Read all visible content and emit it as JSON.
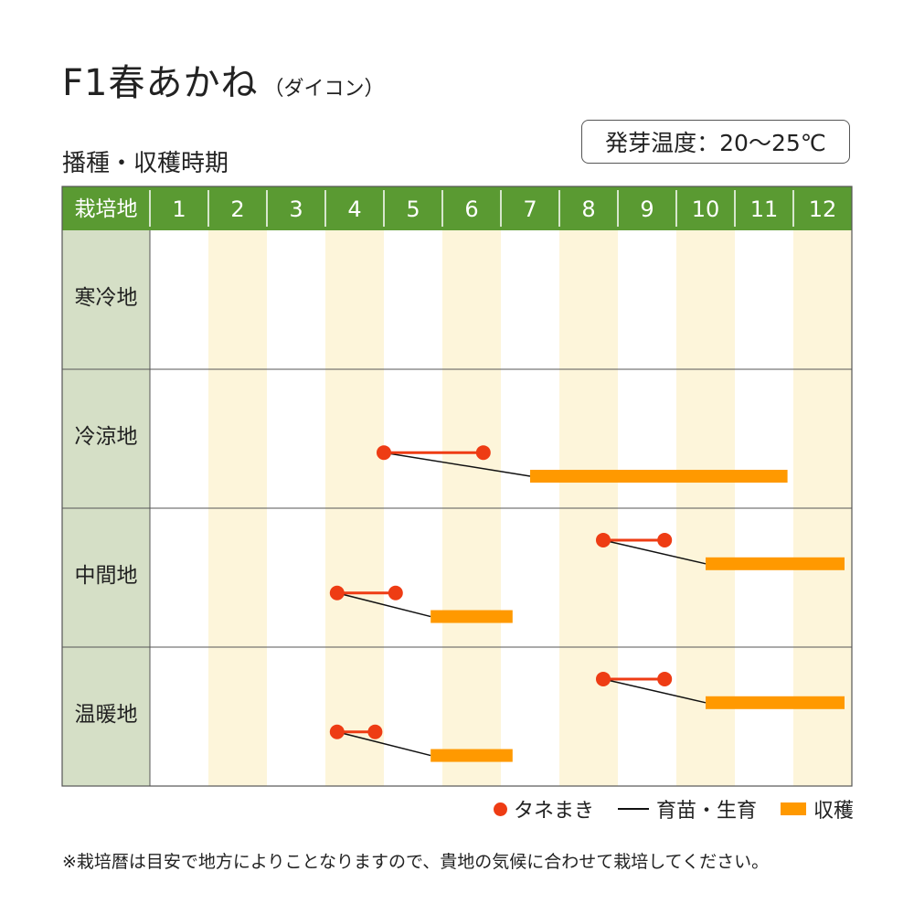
{
  "title": {
    "main": "F1春あかね",
    "sub": "（ダイコン）"
  },
  "section_title": "播種・収穫時期",
  "germination": "発芽温度：20〜25℃",
  "legend": {
    "sowing": "タネまき",
    "growing": "育苗・生育",
    "harvest": "収穫"
  },
  "note": "※栽培暦は目安で地方によりことなりますので、貴地の気候に合わせて栽培してください。",
  "colors": {
    "header_green": "#5a9a32",
    "label_col_bg": "#d5dfc6",
    "stripe": "#fdf5da",
    "sowing": "#ee3c14",
    "harvest": "#ff9900",
    "growth_line": "#111111"
  },
  "chart_data": {
    "type": "gantt",
    "header_label": "栽培地",
    "months": [
      "1",
      "2",
      "3",
      "4",
      "5",
      "6",
      "7",
      "8",
      "9",
      "10",
      "11",
      "12"
    ],
    "regions": [
      {
        "name": "寒冷地",
        "schedules": []
      },
      {
        "name": "冷涼地",
        "schedules": [
          {
            "sow": [
              5.0,
              6.7
            ],
            "harvest": [
              7.5,
              11.9
            ]
          }
        ]
      },
      {
        "name": "中間地",
        "schedules": [
          {
            "sow": [
              8.75,
              9.8
            ],
            "harvest": [
              10.5,
              12.9
            ]
          },
          {
            "sow": [
              4.2,
              5.2
            ],
            "harvest": [
              5.8,
              7.2
            ]
          }
        ]
      },
      {
        "name": "温暖地",
        "schedules": [
          {
            "sow": [
              8.75,
              9.8
            ],
            "harvest": [
              10.5,
              12.9
            ]
          },
          {
            "sow": [
              4.2,
              4.85
            ],
            "harvest": [
              5.8,
              7.2
            ]
          }
        ]
      }
    ]
  }
}
